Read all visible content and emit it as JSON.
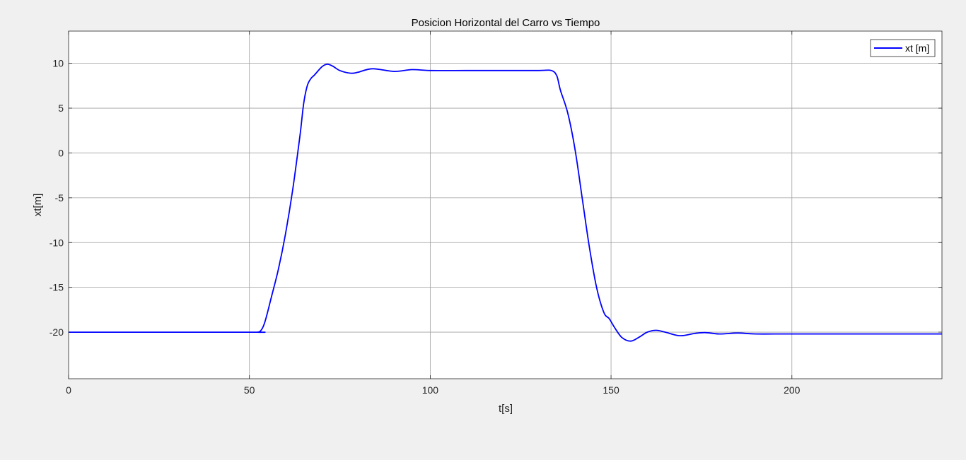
{
  "chart_data": {
    "type": "line",
    "title": "Posicion Horizontal del Carro vs Tiempo",
    "xlabel": "t[s]",
    "ylabel": "xt[m]",
    "xlim": [
      0,
      241.5
    ],
    "ylim": [
      -25.2,
      13.6
    ],
    "xticks": [
      0,
      50,
      100,
      150,
      200
    ],
    "xtick_labels": [
      "0",
      "50",
      "100",
      "150",
      "200"
    ],
    "yticks": [
      10,
      5,
      0,
      -5,
      -10,
      -15,
      -20
    ],
    "ytick_labels": [
      "10",
      "5",
      "0",
      "-5",
      "-10",
      "-15",
      "-20"
    ],
    "grid": true,
    "legend_position": "top-right",
    "series": [
      {
        "name": "xt [m]",
        "color": "#0000ff",
        "x": [
          0,
          50,
          52,
          53,
          54,
          55,
          56,
          58,
          60,
          62,
          64,
          65,
          66,
          67,
          68,
          70,
          71.5,
          73,
          75,
          78,
          80,
          84,
          90,
          95,
          100,
          110,
          120,
          130,
          133.5,
          135,
          136,
          138,
          140,
          142,
          144,
          146,
          148,
          149.5,
          151,
          153,
          155.5,
          158,
          160,
          162.5,
          165,
          169,
          173,
          176,
          180,
          185,
          190,
          200,
          220,
          241.5
        ],
        "y": [
          -20,
          -20,
          -20,
          -19.9,
          -19.2,
          -17.8,
          -16.2,
          -13,
          -9,
          -4,
          2,
          5.5,
          7.5,
          8.3,
          8.7,
          9.6,
          9.9,
          9.7,
          9.2,
          8.9,
          9.0,
          9.4,
          9.1,
          9.3,
          9.2,
          9.2,
          9.2,
          9.2,
          9.2,
          8.6,
          7.0,
          4.5,
          0.5,
          -5,
          -10.5,
          -15,
          -17.8,
          -18.5,
          -19.5,
          -20.6,
          -21.0,
          -20.5,
          -20.0,
          -19.8,
          -20.0,
          -20.4,
          -20.15,
          -20.05,
          -20.2,
          -20.1,
          -20.2,
          -20.2,
          -20.2,
          -20.2
        ]
      }
    ]
  }
}
